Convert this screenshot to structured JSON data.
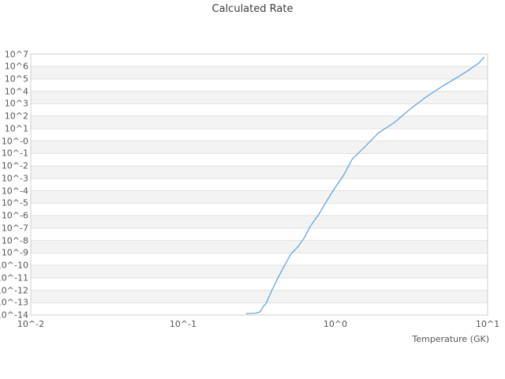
{
  "title": "Calculated Rate",
  "axes": {
    "xlabel": "Temperature (GK)",
    "x_tick_labels": [
      "10^-2",
      "10^-1",
      "10^0",
      "10^1"
    ],
    "y_tick_labels": [
      "10^7",
      "10^6",
      "10^5",
      "10^4",
      "10^3",
      "10^2",
      "10^1",
      "10^-0",
      "10^-1",
      "10^-2",
      "10^-3",
      "10^-4",
      "10^-5",
      "10^-6",
      "10^-7",
      "10^-8",
      "10^-9",
      "10^-10",
      "10^-11",
      "10^-12",
      "10^-13",
      "10^-14"
    ]
  },
  "colors": {
    "line": "#5b9fd8",
    "band": "#f3f3f3",
    "grid": "#e2e2e2",
    "border": "#cfcfcf",
    "background": "#ffffff",
    "text": "#555555",
    "title_text": "#3d3d3d"
  },
  "chart_data": {
    "type": "line",
    "title": "Calculated Rate",
    "xlabel": "Temperature (GK)",
    "ylabel": "",
    "x_scale": "log",
    "y_scale": "log",
    "xlim": [
      0.01,
      10
    ],
    "ylim": [
      1e-14,
      10000000.0
    ],
    "grid": "horizontal-decade-bands",
    "legend": "none",
    "series": [
      {
        "name": "calculated-rate",
        "x": [
          0.26,
          0.3,
          0.32,
          0.34,
          0.35,
          0.38,
          0.42,
          0.46,
          0.51,
          0.57,
          0.62,
          0.69,
          0.78,
          0.88,
          0.99,
          1.14,
          1.29,
          1.57,
          1.92,
          2.44,
          3.1,
          3.94,
          5.0,
          6.35,
          7.43,
          8.79,
          9.44
        ],
        "y": [
          1.3e-14,
          1.4e-14,
          1.8e-14,
          6e-14,
          8e-14,
          8e-13,
          1e-11,
          8e-11,
          8e-10,
          3.3e-09,
          1.4e-08,
          1.6e-07,
          1.3e-06,
          1.6e-05,
          0.00016,
          0.002,
          0.035,
          0.37,
          4.6,
          31,
          380,
          3500,
          24000.0,
          140000.0,
          460000.0,
          2000000.0,
          5500000.0
        ]
      }
    ]
  }
}
